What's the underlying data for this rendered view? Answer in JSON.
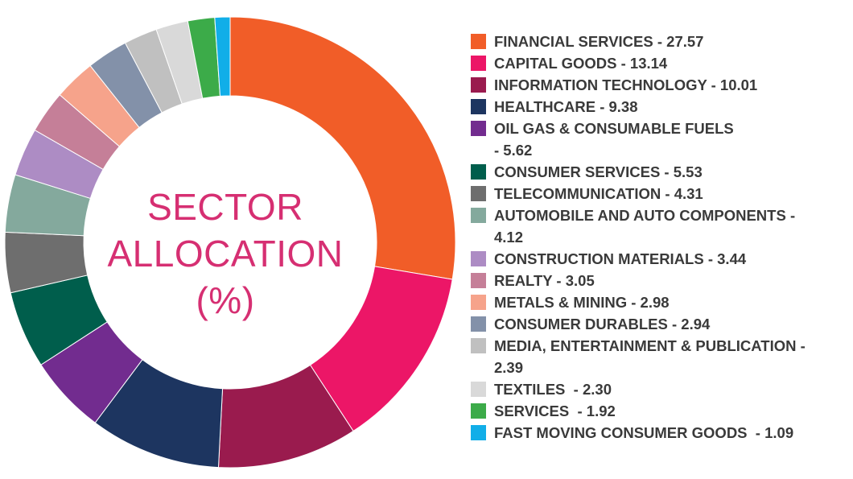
{
  "chart_data": {
    "type": "pie",
    "donut": true,
    "center_title_lines": [
      "SECTOR",
      "ALLOCATION",
      "(%)"
    ],
    "legend_position": "right",
    "series": [
      {
        "label": "FINANCIAL SERVICES - 27.57",
        "category": "FINANCIAL SERVICES",
        "value": 27.57,
        "color": "#f15d28"
      },
      {
        "label": "CAPITAL GOODS - 13.14",
        "category": "CAPITAL GOODS",
        "value": 13.14,
        "color": "#ec1667"
      },
      {
        "label": "INFORMATION TECHNOLOGY - 10.01",
        "category": "INFORMATION TECHNOLOGY",
        "value": 10.01,
        "color": "#9a1b4e"
      },
      {
        "label": "HEALTHCARE - 9.38",
        "category": "HEALTHCARE",
        "value": 9.38,
        "color": "#1d3560"
      },
      {
        "label": "OIL GAS & CONSUMABLE FUELS\n- 5.62",
        "category": "OIL GAS & CONSUMABLE FUELS",
        "value": 5.62,
        "color": "#722c8f"
      },
      {
        "label": "CONSUMER SERVICES - 5.53",
        "category": "CONSUMER SERVICES",
        "value": 5.53,
        "color": "#005e4c"
      },
      {
        "label": "TELECOMMUNICATION - 4.31",
        "category": "TELECOMMUNICATION",
        "value": 4.31,
        "color": "#6e6e6e"
      },
      {
        "label": "AUTOMOBILE AND AUTO COMPONENTS -\n4.12",
        "category": "AUTOMOBILE AND AUTO COMPONENTS",
        "value": 4.12,
        "color": "#84a99d"
      },
      {
        "label": "CONSTRUCTION MATERIALS - 3.44",
        "category": "CONSTRUCTION MATERIALS",
        "value": 3.44,
        "color": "#ad8cc4"
      },
      {
        "label": "REALTY - 3.05",
        "category": "REALTY",
        "value": 3.05,
        "color": "#c57f98"
      },
      {
        "label": "METALS & MINING - 2.98",
        "category": "METALS & MINING",
        "value": 2.98,
        "color": "#f6a38b"
      },
      {
        "label": "CONSUMER DURABLES - 2.94",
        "category": "CONSUMER DURABLES",
        "value": 2.94,
        "color": "#8391a9"
      },
      {
        "label": "MEDIA, ENTERTAINMENT & PUBLICATION -\n2.39",
        "category": "MEDIA, ENTERTAINMENT & PUBLICATION",
        "value": 2.39,
        "color": "#c0c0c0"
      },
      {
        "label": "TEXTILES  - 2.30",
        "category": "TEXTILES",
        "value": 2.3,
        "color": "#d9d9d9"
      },
      {
        "label": "SERVICES  - 1.92",
        "category": "SERVICES",
        "value": 1.92,
        "color": "#3cab49"
      },
      {
        "label": "FAST MOVING CONSUMER GOODS  - 1.09",
        "category": "FAST MOVING CONSUMER GOODS",
        "value": 1.09,
        "color": "#11aee8"
      }
    ]
  }
}
